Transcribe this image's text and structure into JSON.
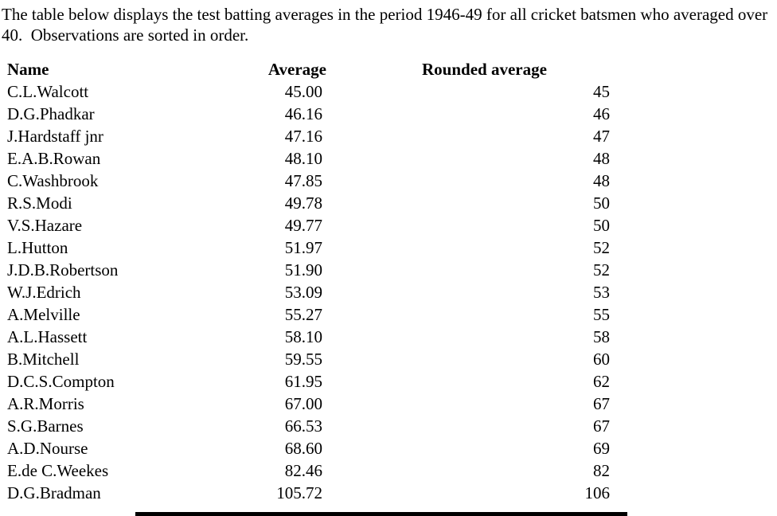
{
  "intro_text": "The table below displays the test batting averages in the period 1946-49 for all cricket batsmen who averaged over 40.  Observations are sorted in order.",
  "table": {
    "headers": {
      "name": "Name",
      "average": "Average",
      "rounded": "Rounded average"
    },
    "rows": [
      {
        "name": "C.L.Walcott",
        "average": "45.00",
        "rounded": "45"
      },
      {
        "name": "D.G.Phadkar",
        "average": "46.16",
        "rounded": "46"
      },
      {
        "name": "J.Hardstaff jnr",
        "average": "47.16",
        "rounded": "47"
      },
      {
        "name": "E.A.B.Rowan",
        "average": "48.10",
        "rounded": "48"
      },
      {
        "name": "C.Washbrook",
        "average": "47.85",
        "rounded": "48"
      },
      {
        "name": "R.S.Modi",
        "average": "49.78",
        "rounded": "50"
      },
      {
        "name": "V.S.Hazare",
        "average": "49.77",
        "rounded": "50"
      },
      {
        "name": "L.Hutton",
        "average": "51.97",
        "rounded": "52"
      },
      {
        "name": "J.D.B.Robertson",
        "average": "51.90",
        "rounded": "52"
      },
      {
        "name": "W.J.Edrich",
        "average": "53.09",
        "rounded": "53"
      },
      {
        "name": "A.Melville",
        "average": "55.27",
        "rounded": "55"
      },
      {
        "name": "A.L.Hassett",
        "average": "58.10",
        "rounded": "58"
      },
      {
        "name": "B.Mitchell",
        "average": "59.55",
        "rounded": "60"
      },
      {
        "name": "D.C.S.Compton",
        "average": "61.95",
        "rounded": "62"
      },
      {
        "name": "A.R.Morris",
        "average": "67.00",
        "rounded": "67"
      },
      {
        "name": "S.G.Barnes",
        "average": "66.53",
        "rounded": "67"
      },
      {
        "name": "A.D.Nourse",
        "average": "68.60",
        "rounded": "69"
      },
      {
        "name": "E.de C.Weekes",
        "average": "82.46",
        "rounded": "82"
      },
      {
        "name": "D.G.Bradman",
        "average": "105.72",
        "rounded": "106"
      }
    ]
  },
  "colors": {
    "text": "#000000",
    "background": "#ffffff",
    "bottom_bar": "#000000"
  }
}
